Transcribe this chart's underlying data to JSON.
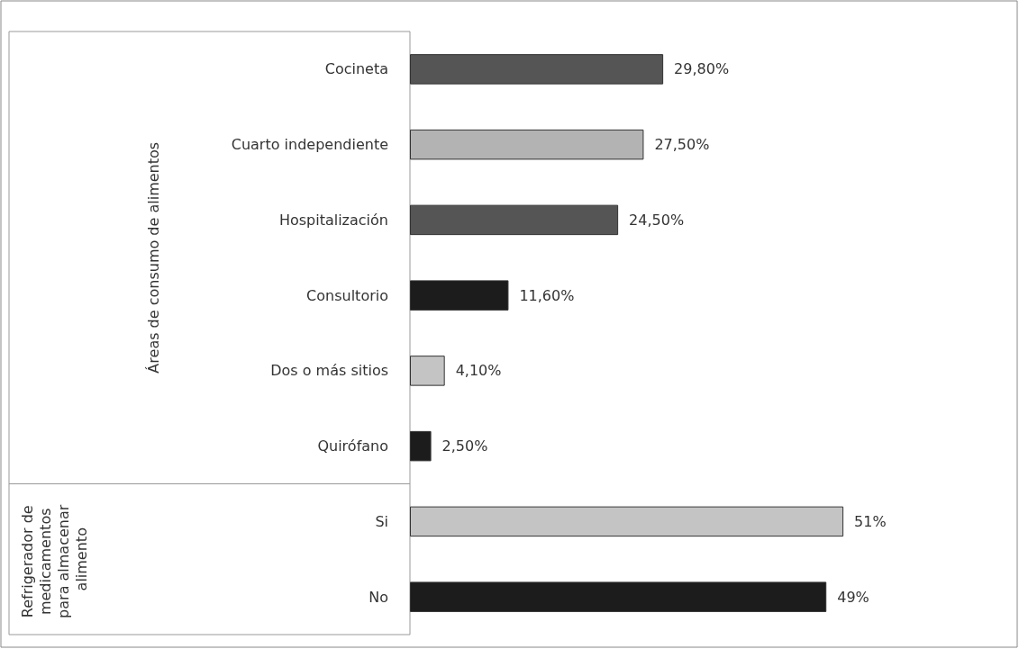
{
  "chart_data": {
    "type": "bar",
    "orientation": "horizontal",
    "categories": [
      "Cocineta",
      "Cuarto independiente",
      "Hospitalización",
      "Consultorio",
      "Dos o más sitios",
      "Quirófano",
      "Si",
      "No"
    ],
    "values": [
      29.8,
      27.5,
      24.5,
      11.6,
      4.1,
      2.5,
      51,
      49
    ],
    "colors": [
      "#555555",
      "#b3b3b3",
      "#555555",
      "#1c1c1c",
      "#c4c4c4",
      "#1c1c1c",
      "#c4c4c4",
      "#1c1c1c"
    ],
    "value_labels": [
      "29,80%",
      "27,50%",
      "24,50%",
      "11,60%",
      "4,10%",
      "2,50%",
      "51%",
      "49%"
    ],
    "annotations": [
      "Áreas de consumo de alimentos",
      "Refrigerador de medicamentos para almacenar alimento"
    ],
    "grid": false
  }
}
